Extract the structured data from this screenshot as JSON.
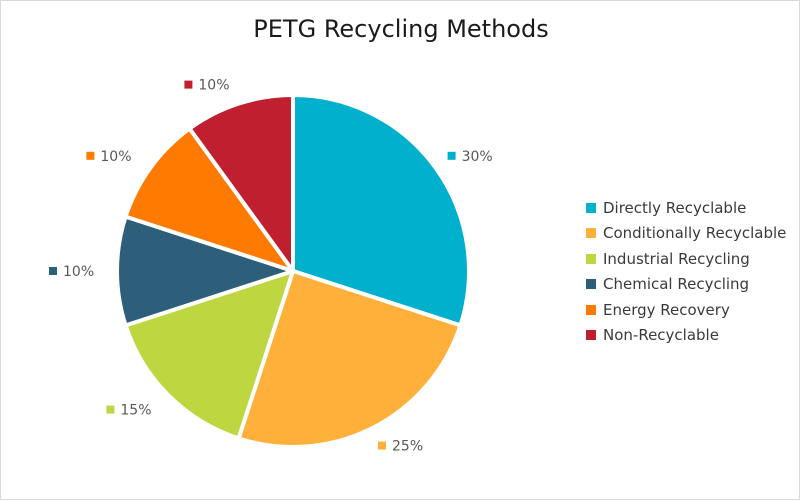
{
  "chart_data": {
    "type": "pie",
    "title": "PETG Recycling Methods",
    "legend_position": "right",
    "slices": [
      {
        "name": "Directly Recyclable",
        "value": 30,
        "label": "30%",
        "color": "#00b0cc"
      },
      {
        "name": "Conditionally Recyclable",
        "value": 25,
        "label": "25%",
        "color": "#ffb03b"
      },
      {
        "name": "Industrial Recycling",
        "value": 15,
        "label": "15%",
        "color": "#bed640"
      },
      {
        "name": "Chemical Recycling",
        "value": 10,
        "label": "10%",
        "color": "#2d5f7a"
      },
      {
        "name": "Energy Recovery",
        "value": 10,
        "label": "10%",
        "color": "#ff7a00"
      },
      {
        "name": "Non-Recyclable",
        "value": 10,
        "label": "10%",
        "color": "#c01f2f"
      }
    ]
  }
}
